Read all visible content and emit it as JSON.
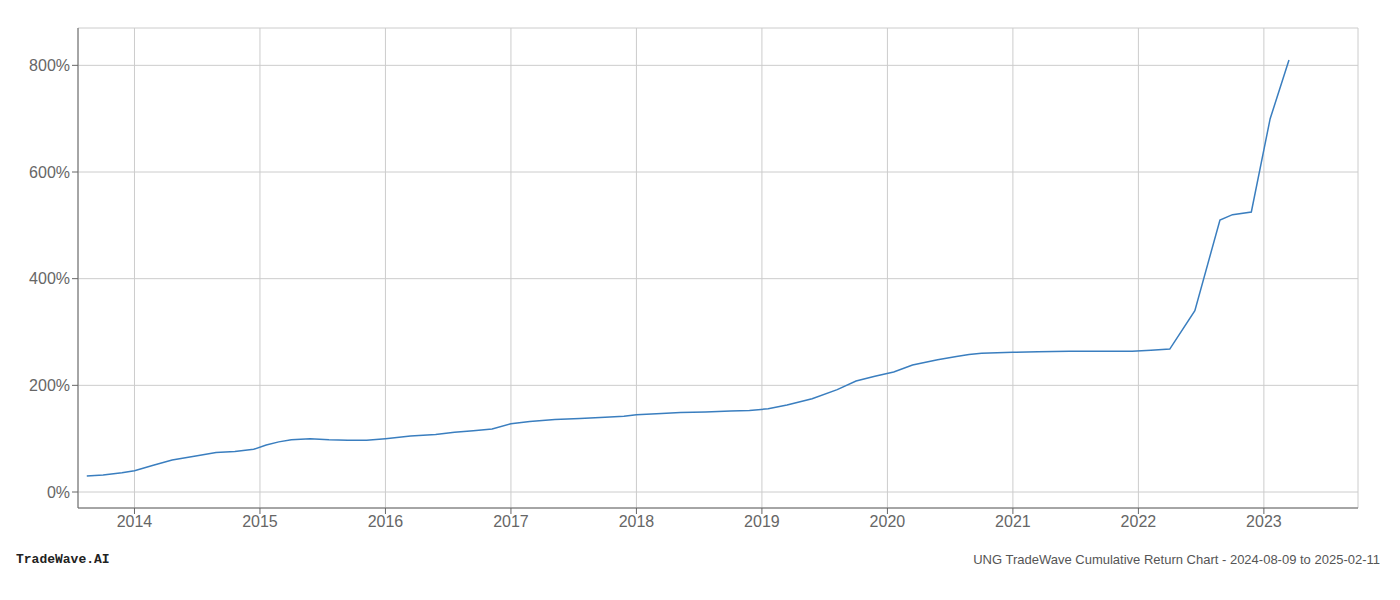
{
  "chart_data": {
    "type": "line",
    "title": "UNG TradeWave Cumulative Return Chart - 2024-08-09 to 2025-02-11",
    "annotations": [
      "TradeWave.AI"
    ],
    "color": "#3a7ebf",
    "grid": true,
    "xlim": [
      2013.55,
      2023.75
    ],
    "xticks": [
      2014,
      2015,
      2016,
      2017,
      2018,
      2019,
      2020,
      2021,
      2022,
      2023
    ],
    "ylim": [
      -30,
      870
    ],
    "yticks": [
      {
        "value": 0,
        "label": "0%"
      },
      {
        "value": 200,
        "label": "200%"
      },
      {
        "value": 400,
        "label": "400%"
      },
      {
        "value": 600,
        "label": "600%"
      },
      {
        "value": 800,
        "label": "800%"
      }
    ],
    "x": [
      2013.62,
      2013.75,
      2013.9,
      2014.0,
      2014.15,
      2014.3,
      2014.5,
      2014.65,
      2014.8,
      2014.95,
      2015.05,
      2015.15,
      2015.25,
      2015.4,
      2015.55,
      2015.7,
      2015.85,
      2016.0,
      2016.2,
      2016.4,
      2016.55,
      2016.7,
      2016.85,
      2017.0,
      2017.15,
      2017.35,
      2017.55,
      2017.75,
      2017.9,
      2018.0,
      2018.2,
      2018.35,
      2018.55,
      2018.75,
      2018.9,
      2019.05,
      2019.2,
      2019.4,
      2019.6,
      2019.75,
      2019.9,
      2020.05,
      2020.2,
      2020.4,
      2020.55,
      2020.65,
      2020.75,
      2021.0,
      2021.2,
      2021.45,
      2021.65,
      2021.8,
      2021.95,
      2022.1,
      2022.25,
      2022.45,
      2022.65,
      2022.75,
      2022.9,
      2023.05,
      2023.2
    ],
    "values": [
      30,
      32,
      36,
      40,
      50,
      60,
      68,
      74,
      76,
      80,
      88,
      94,
      98,
      100,
      98,
      97,
      97,
      100,
      105,
      108,
      112,
      115,
      118,
      128,
      132,
      136,
      138,
      140,
      142,
      145,
      147,
      149,
      150,
      152,
      153,
      156,
      163,
      175,
      192,
      208,
      217,
      225,
      238,
      248,
      254,
      258,
      260,
      262,
      263,
      264,
      264,
      264,
      264,
      266,
      268,
      340,
      510,
      520,
      525,
      700,
      810
    ]
  }
}
